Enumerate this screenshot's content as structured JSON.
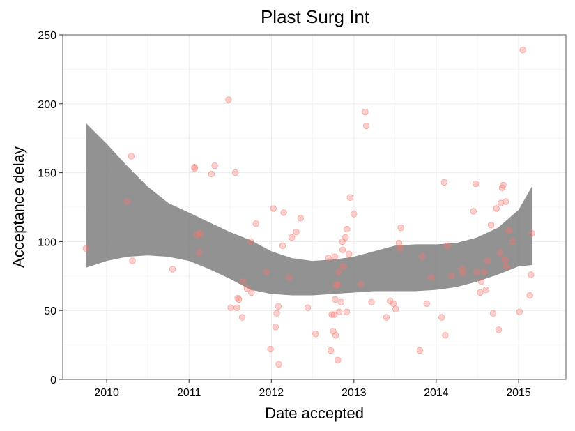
{
  "chart_data": {
    "type": "scatter",
    "title": "Plast Surg Int",
    "xlabel": "Date accepted",
    "ylabel": "Acceptance delay",
    "x_ticks": [
      "2010",
      "2011",
      "2012",
      "2013",
      "2014",
      "2015"
    ],
    "y_ticks": [
      "0",
      "50",
      "100",
      "150",
      "200",
      "250"
    ],
    "xlim": [
      "2009-06-20",
      "2015-07-30"
    ],
    "ylim": [
      0,
      250
    ],
    "grid": true,
    "legend": "none",
    "colors": {
      "points": "#f8766d",
      "band": "#7f7f7f",
      "grid": "#ebebeb",
      "panel_border": "#7f7f7f"
    },
    "points": [
      {
        "x": "2009-10-01",
        "y": 95
      },
      {
        "x": "2010-04-01",
        "y": 129
      },
      {
        "x": "2010-04-20",
        "y": 162
      },
      {
        "x": "2010-04-25",
        "y": 86
      },
      {
        "x": "2010-10-20",
        "y": 80
      },
      {
        "x": "2011-01-25",
        "y": 154
      },
      {
        "x": "2011-01-26",
        "y": 153
      },
      {
        "x": "2011-02-05",
        "y": 105
      },
      {
        "x": "2011-02-15",
        "y": 92
      },
      {
        "x": "2011-02-20",
        "y": 106
      },
      {
        "x": "2011-04-10",
        "y": 149
      },
      {
        "x": "2011-04-25",
        "y": 155
      },
      {
        "x": "2011-06-25",
        "y": 203
      },
      {
        "x": "2011-07-05",
        "y": 52
      },
      {
        "x": "2011-07-25",
        "y": 150
      },
      {
        "x": "2011-08-01",
        "y": 52
      },
      {
        "x": "2011-08-05",
        "y": 59
      },
      {
        "x": "2011-08-10",
        "y": 58
      },
      {
        "x": "2011-08-25",
        "y": 45
      },
      {
        "x": "2011-08-28",
        "y": 71
      },
      {
        "x": "2011-09-15",
        "y": 66
      },
      {
        "x": "2011-10-01",
        "y": 100
      },
      {
        "x": "2011-10-05",
        "y": 63
      },
      {
        "x": "2011-10-25",
        "y": 113
      },
      {
        "x": "2011-12-10",
        "y": 78
      },
      {
        "x": "2011-12-28",
        "y": 22
      },
      {
        "x": "2012-01-10",
        "y": 124
      },
      {
        "x": "2012-01-20",
        "y": 38
      },
      {
        "x": "2012-01-25",
        "y": 48
      },
      {
        "x": "2012-02-01",
        "y": 53
      },
      {
        "x": "2012-02-03",
        "y": 11
      },
      {
        "x": "2012-02-20",
        "y": 97
      },
      {
        "x": "2012-02-25",
        "y": 121
      },
      {
        "x": "2012-03-20",
        "y": 74
      },
      {
        "x": "2012-04-01",
        "y": 103
      },
      {
        "x": "2012-04-20",
        "y": 107
      },
      {
        "x": "2012-05-10",
        "y": 117
      },
      {
        "x": "2012-06-10",
        "y": 52
      },
      {
        "x": "2012-07-15",
        "y": 33
      },
      {
        "x": "2012-09-10",
        "y": 88
      },
      {
        "x": "2012-09-20",
        "y": 21
      },
      {
        "x": "2012-09-25",
        "y": 47
      },
      {
        "x": "2012-10-01",
        "y": 35
      },
      {
        "x": "2012-10-05",
        "y": 47
      },
      {
        "x": "2012-10-08",
        "y": 89
      },
      {
        "x": "2012-10-10",
        "y": 58
      },
      {
        "x": "2012-10-12",
        "y": 32
      },
      {
        "x": "2012-10-15",
        "y": 68
      },
      {
        "x": "2012-10-20",
        "y": 69
      },
      {
        "x": "2012-10-22",
        "y": 14
      },
      {
        "x": "2012-10-25",
        "y": 78
      },
      {
        "x": "2012-10-28",
        "y": 49
      },
      {
        "x": "2012-11-05",
        "y": 56
      },
      {
        "x": "2012-11-10",
        "y": 100
      },
      {
        "x": "2012-11-12",
        "y": 94
      },
      {
        "x": "2012-11-15",
        "y": 82
      },
      {
        "x": "2012-11-25",
        "y": 103
      },
      {
        "x": "2012-11-30",
        "y": 49
      },
      {
        "x": "2012-12-01",
        "y": 109
      },
      {
        "x": "2012-12-10",
        "y": 91
      },
      {
        "x": "2012-12-15",
        "y": 132
      },
      {
        "x": "2013-01-01",
        "y": 120
      },
      {
        "x": "2013-02-01",
        "y": 69
      },
      {
        "x": "2013-02-20",
        "y": 194
      },
      {
        "x": "2013-02-25",
        "y": 184
      },
      {
        "x": "2013-03-20",
        "y": 56
      },
      {
        "x": "2013-05-25",
        "y": 45
      },
      {
        "x": "2013-06-10",
        "y": 57
      },
      {
        "x": "2013-06-25",
        "y": 55
      },
      {
        "x": "2013-07-05",
        "y": 51
      },
      {
        "x": "2013-07-20",
        "y": 99
      },
      {
        "x": "2013-07-25",
        "y": 95
      },
      {
        "x": "2013-07-28",
        "y": 110
      },
      {
        "x": "2013-10-20",
        "y": 21
      },
      {
        "x": "2013-10-30",
        "y": 89
      },
      {
        "x": "2013-11-20",
        "y": 55
      },
      {
        "x": "2013-12-10",
        "y": 74
      },
      {
        "x": "2014-01-25",
        "y": 45
      },
      {
        "x": "2014-02-05",
        "y": 143
      },
      {
        "x": "2014-02-10",
        "y": 32
      },
      {
        "x": "2014-02-20",
        "y": 97
      },
      {
        "x": "2014-03-10",
        "y": 75
      },
      {
        "x": "2014-04-25",
        "y": 80
      },
      {
        "x": "2014-04-28",
        "y": 77
      },
      {
        "x": "2014-06-15",
        "y": 122
      },
      {
        "x": "2014-06-25",
        "y": 142
      },
      {
        "x": "2014-06-28",
        "y": 78
      },
      {
        "x": "2014-07-15",
        "y": 63
      },
      {
        "x": "2014-07-20",
        "y": 71
      },
      {
        "x": "2014-08-01",
        "y": 78
      },
      {
        "x": "2014-08-10",
        "y": 65
      },
      {
        "x": "2014-08-15",
        "y": 86
      },
      {
        "x": "2014-09-01",
        "y": 112
      },
      {
        "x": "2014-09-10",
        "y": 48
      },
      {
        "x": "2014-09-25",
        "y": 124
      },
      {
        "x": "2014-10-05",
        "y": 36
      },
      {
        "x": "2014-10-10",
        "y": 92
      },
      {
        "x": "2014-10-15",
        "y": 128
      },
      {
        "x": "2014-10-20",
        "y": 139
      },
      {
        "x": "2014-10-25",
        "y": 141
      },
      {
        "x": "2014-11-01",
        "y": 87
      },
      {
        "x": "2014-11-05",
        "y": 129
      },
      {
        "x": "2014-11-08",
        "y": 82
      },
      {
        "x": "2014-11-20",
        "y": 108
      },
      {
        "x": "2014-12-05",
        "y": 100
      },
      {
        "x": "2015-01-05",
        "y": 49
      },
      {
        "x": "2015-01-20",
        "y": 239
      },
      {
        "x": "2015-02-20",
        "y": 61
      },
      {
        "x": "2015-02-25",
        "y": 76
      },
      {
        "x": "2015-03-01",
        "y": 106
      }
    ],
    "smooth_band": {
      "x": [
        "2009-10-01",
        "2010-01-01",
        "2010-04-01",
        "2010-07-01",
        "2010-10-01",
        "2011-01-01",
        "2011-04-01",
        "2011-07-01",
        "2011-10-01",
        "2012-01-01",
        "2012-04-01",
        "2012-07-01",
        "2012-10-01",
        "2013-01-01",
        "2013-04-01",
        "2013-07-01",
        "2013-10-01",
        "2014-01-01",
        "2014-04-01",
        "2014-07-01",
        "2014-10-01",
        "2015-01-01",
        "2015-03-01"
      ],
      "upper": [
        186,
        171,
        155,
        140,
        128,
        121,
        114,
        107,
        101,
        93,
        88,
        86,
        87,
        89,
        93,
        97,
        98,
        98,
        99,
        103,
        110,
        123,
        140
      ],
      "lower": [
        81,
        86,
        89,
        90,
        89,
        86,
        80,
        73,
        65,
        62,
        61,
        61,
        62,
        63,
        64,
        64,
        64,
        65,
        67,
        71,
        76,
        82,
        83
      ]
    }
  }
}
